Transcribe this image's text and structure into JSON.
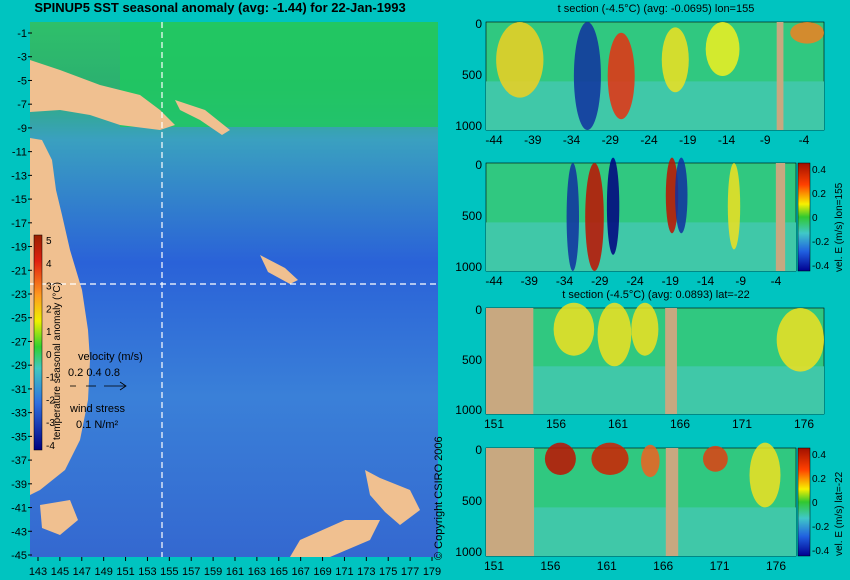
{
  "chart_data": [
    {
      "type": "heatmap",
      "title": "SPINUP5 SST seasonal anomaly (avg: -1.44) for 22-Jan-1993",
      "x_ticks": [
        "143",
        "145",
        "147",
        "149",
        "151",
        "153",
        "155",
        "157",
        "159",
        "161",
        "163",
        "165",
        "167",
        "169",
        "171",
        "173",
        "175",
        "177",
        "179"
      ],
      "y_ticks": [
        "-1",
        "-3",
        "-5",
        "-7",
        "-9",
        "-11",
        "-13",
        "-15",
        "-17",
        "-19",
        "-21",
        "-23",
        "-25",
        "-27",
        "-29",
        "-31",
        "-33",
        "-35",
        "-37",
        "-39",
        "-41",
        "-43",
        "-45"
      ],
      "colorbar": {
        "label": "temperature seasonal anomaly (°C)",
        "ticks": [
          "5",
          "4",
          "3",
          "2",
          "1",
          "0",
          "-1",
          "-2",
          "-3",
          "-4"
        ],
        "range": [
          -4,
          5
        ]
      },
      "legend": {
        "velocity_label": "velocity (m/s)",
        "velocity_scale": "0.2 0.4 0.8",
        "wind_label": "wind stress",
        "wind_scale": "0.1 N/m²"
      },
      "section_lines": {
        "lon": 155,
        "lat": -22
      }
    },
    {
      "type": "heatmap",
      "title": "t section (-4.5°C) (avg: -0.0695) lon=155",
      "x_ticks": [
        "-44",
        "-39",
        "-34",
        "-29",
        "-24",
        "-19",
        "-14",
        "-9",
        "-4"
      ],
      "y_ticks": [
        "0",
        "500",
        "1000"
      ],
      "ylim": [
        1050,
        0
      ]
    },
    {
      "type": "heatmap",
      "title": "",
      "x_ticks": [
        "-44",
        "-39",
        "-34",
        "-29",
        "-24",
        "-19",
        "-14",
        "-9",
        "-4"
      ],
      "y_ticks": [
        "0",
        "500",
        "1000"
      ],
      "colorbar": {
        "label": "vel. E (m/s) lon=155",
        "ticks": [
          "0.4",
          "0.2",
          "0",
          "-0.2",
          "-0.4"
        ],
        "range": [
          -0.4,
          0.4
        ]
      }
    },
    {
      "type": "heatmap",
      "title": "t section (-4.5°C) (avg: 0.0893) lat=-22",
      "x_ticks": [
        "151",
        "156",
        "161",
        "166",
        "171",
        "176"
      ],
      "y_ticks": [
        "0",
        "500",
        "1000"
      ]
    },
    {
      "type": "heatmap",
      "title": "",
      "x_ticks": [
        "151",
        "156",
        "161",
        "166",
        "171",
        "176"
      ],
      "y_ticks": [
        "0",
        "500",
        "1000"
      ],
      "colorbar": {
        "label": "vel. E (m/s) lat=-22",
        "ticks": [
          "0.4",
          "0.2",
          "0",
          "-0.2",
          "-0.4"
        ],
        "range": [
          -0.4,
          0.4
        ]
      }
    }
  ],
  "copyright": "© Copyright CSIRO 2006",
  "colors": {
    "background": "#00c4c0",
    "land": "#f0c090",
    "land_section": "#c8a880",
    "axes_text": "#000000",
    "section_line": "#ffffff"
  }
}
